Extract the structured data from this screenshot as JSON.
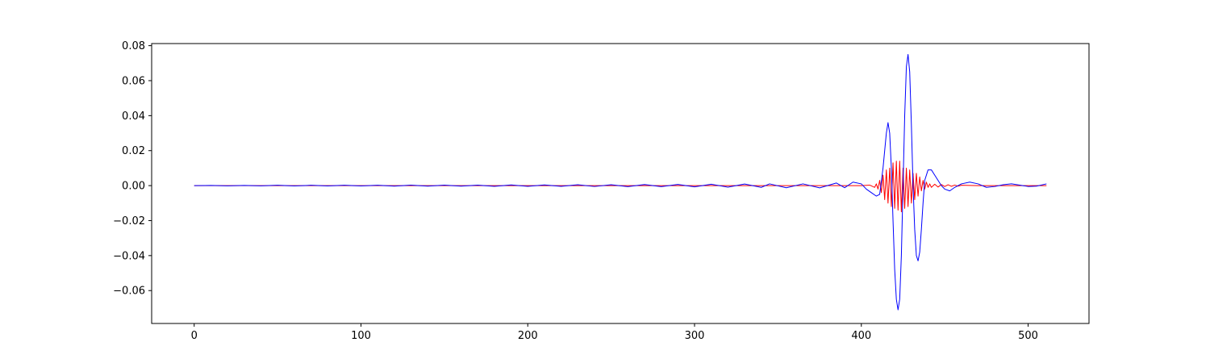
{
  "chart_data": {
    "type": "line",
    "title": "",
    "xlabel": "",
    "ylabel": "",
    "xlim": [
      -25.5,
      536.5
    ],
    "ylim": [
      -0.0788,
      0.0812
    ],
    "xticks": [
      0,
      100,
      200,
      300,
      400,
      500
    ],
    "xtick_labels": [
      "0",
      "100",
      "200",
      "300",
      "400",
      "500"
    ],
    "yticks": [
      -0.06,
      -0.04,
      -0.02,
      0.0,
      0.02,
      0.04,
      0.06,
      0.08
    ],
    "ytick_labels": [
      "−0.06",
      "−0.04",
      "−0.02",
      "0.00",
      "0.02",
      "0.04",
      "0.06",
      "0.08"
    ],
    "grid": false,
    "legend": "none",
    "series": [
      {
        "color": "#ff0000",
        "points": [
          [
            0,
            0
          ],
          [
            50,
            0
          ],
          [
            100,
            0
          ],
          [
            150,
            0
          ],
          [
            200,
            0
          ],
          [
            250,
            0
          ],
          [
            300,
            0
          ],
          [
            340,
            0
          ],
          [
            380,
            0
          ],
          [
            400,
            0
          ],
          [
            405,
            0.0003
          ],
          [
            408,
            -0.001
          ],
          [
            409,
            0.001
          ],
          [
            410,
            -0.002
          ],
          [
            411,
            0.003
          ],
          [
            412,
            -0.004
          ],
          [
            413,
            0.006
          ],
          [
            414,
            -0.008
          ],
          [
            415,
            0.009
          ],
          [
            416,
            -0.01
          ],
          [
            417,
            0.01
          ],
          [
            418,
            -0.012
          ],
          [
            419,
            0.013
          ],
          [
            420,
            -0.013
          ],
          [
            421,
            0.014
          ],
          [
            422,
            -0.014
          ],
          [
            423,
            0.014
          ],
          [
            424,
            -0.015
          ],
          [
            425,
            0.01
          ],
          [
            426,
            -0.013
          ],
          [
            427,
            0.01
          ],
          [
            428,
            -0.012
          ],
          [
            429,
            0.009
          ],
          [
            430,
            -0.01
          ],
          [
            431,
            0.007
          ],
          [
            432,
            -0.008
          ],
          [
            433,
            0.007
          ],
          [
            434,
            -0.006
          ],
          [
            435,
            0.005
          ],
          [
            436,
            -0.003
          ],
          [
            437,
            0.003
          ],
          [
            438,
            -0.002
          ],
          [
            439,
            0.002
          ],
          [
            440,
            -0.001
          ],
          [
            441,
            0.001
          ],
          [
            442,
            -0.001
          ],
          [
            444,
            0.0008
          ],
          [
            446,
            -0.0008
          ],
          [
            448,
            0.0006
          ],
          [
            450,
            -0.0005
          ],
          [
            452,
            0.0005
          ],
          [
            454,
            -0.0004
          ],
          [
            456,
            0.0003
          ],
          [
            458,
            -0.0003
          ],
          [
            460,
            0.0002
          ],
          [
            470,
            0
          ],
          [
            480,
            0
          ],
          [
            490,
            0
          ],
          [
            500,
            0
          ],
          [
            511,
            0
          ]
        ]
      },
      {
        "color": "#0000ff",
        "points": [
          [
            0,
            0
          ],
          [
            10,
            0.0001
          ],
          [
            20,
            -0.0001
          ],
          [
            30,
            0.0001
          ],
          [
            40,
            -0.0001
          ],
          [
            50,
            0.0002
          ],
          [
            60,
            -0.0002
          ],
          [
            70,
            0.0002
          ],
          [
            80,
            -0.0002
          ],
          [
            90,
            0.0002
          ],
          [
            100,
            -0.0002
          ],
          [
            110,
            0.0002
          ],
          [
            120,
            -0.0003
          ],
          [
            130,
            0.0003
          ],
          [
            140,
            -0.0003
          ],
          [
            150,
            0.0003
          ],
          [
            160,
            -0.0003
          ],
          [
            170,
            0.0003
          ],
          [
            180,
            -0.0004
          ],
          [
            190,
            0.0004
          ],
          [
            200,
            -0.0004
          ],
          [
            210,
            0.0004
          ],
          [
            220,
            -0.0004
          ],
          [
            230,
            0.0005
          ],
          [
            240,
            -0.0005
          ],
          [
            250,
            0.0005
          ],
          [
            260,
            -0.0006
          ],
          [
            270,
            0.0006
          ],
          [
            280,
            -0.0006
          ],
          [
            290,
            0.0007
          ],
          [
            300,
            -0.0007
          ],
          [
            310,
            0.0008
          ],
          [
            320,
            -0.0009
          ],
          [
            330,
            0.0009
          ],
          [
            340,
            -0.001
          ],
          [
            345,
            0.001
          ],
          [
            355,
            -0.0012
          ],
          [
            365,
            0.001
          ],
          [
            375,
            -0.0013
          ],
          [
            385,
            0.0015
          ],
          [
            390,
            -0.0012
          ],
          [
            395,
            0.002
          ],
          [
            400,
            0.001
          ],
          [
            403,
            -0.002
          ],
          [
            406,
            -0.004
          ],
          [
            409,
            -0.006
          ],
          [
            411,
            -0.005
          ],
          [
            413,
            0.01
          ],
          [
            415,
            0.03
          ],
          [
            416,
            0.036
          ],
          [
            417,
            0.03
          ],
          [
            418,
            0.01
          ],
          [
            419,
            -0.02
          ],
          [
            420,
            -0.048
          ],
          [
            421,
            -0.065
          ],
          [
            422,
            -0.071
          ],
          [
            423,
            -0.065
          ],
          [
            424,
            -0.04
          ],
          [
            425,
            0.0
          ],
          [
            426,
            0.04
          ],
          [
            427,
            0.068
          ],
          [
            428,
            0.075
          ],
          [
            429,
            0.065
          ],
          [
            430,
            0.035
          ],
          [
            431,
            0.0
          ],
          [
            432,
            -0.025
          ],
          [
            433,
            -0.04
          ],
          [
            434,
            -0.043
          ],
          [
            435,
            -0.038
          ],
          [
            436,
            -0.025
          ],
          [
            437,
            -0.01
          ],
          [
            438,
            0.003
          ],
          [
            440,
            0.009
          ],
          [
            442,
            0.009
          ],
          [
            444,
            0.006
          ],
          [
            446,
            0.003
          ],
          [
            448,
            0.0
          ],
          [
            450,
            -0.002
          ],
          [
            453,
            -0.003
          ],
          [
            456,
            -0.001
          ],
          [
            460,
            0.001
          ],
          [
            465,
            0.002
          ],
          [
            470,
            0.001
          ],
          [
            475,
            -0.001
          ],
          [
            480,
            -0.0005
          ],
          [
            485,
            0.0005
          ],
          [
            490,
            0.001
          ],
          [
            495,
            0.0003
          ],
          [
            500,
            -0.0005
          ],
          [
            505,
            -0.0003
          ],
          [
            511,
            0.001
          ]
        ]
      }
    ]
  }
}
